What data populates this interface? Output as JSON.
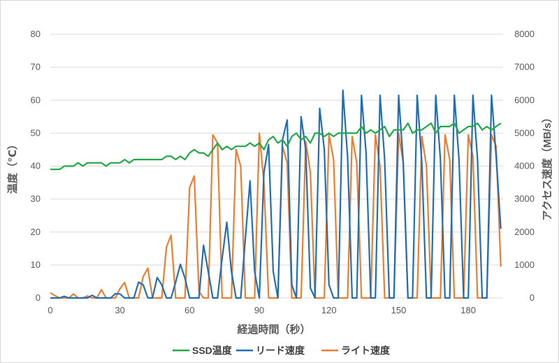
{
  "chart_data": {
    "type": "line",
    "xlabel": "経過時間（秒）",
    "ylabel_left": "温度（℃）",
    "ylabel_right": "アクセス速度（MB/s）",
    "xlim": [
      0,
      195
    ],
    "xticks": [
      0,
      30,
      60,
      90,
      120,
      150,
      180
    ],
    "ylim_left": [
      0,
      80
    ],
    "yticks_left": [
      0,
      10,
      20,
      30,
      40,
      50,
      60,
      70,
      80
    ],
    "ylim_right": [
      0,
      8000
    ],
    "yticks_right": [
      0,
      1000,
      2000,
      3000,
      4000,
      5000,
      6000,
      7000,
      8000
    ],
    "grid": true,
    "legend_position": "bottom",
    "series": [
      {
        "name": "SSD温度",
        "axis": "left",
        "color": "#22a846",
        "x": [
          0,
          2,
          4,
          6,
          8,
          10,
          12,
          14,
          16,
          18,
          20,
          22,
          24,
          26,
          28,
          30,
          32,
          34,
          36,
          38,
          40,
          42,
          44,
          46,
          48,
          50,
          52,
          54,
          56,
          58,
          60,
          62,
          64,
          66,
          68,
          70,
          72,
          74,
          76,
          78,
          80,
          82,
          84,
          86,
          88,
          90,
          92,
          94,
          96,
          98,
          100,
          102,
          104,
          106,
          108,
          110,
          112,
          114,
          116,
          118,
          120,
          122,
          124,
          126,
          128,
          130,
          132,
          134,
          136,
          138,
          140,
          142,
          144,
          146,
          148,
          150,
          152,
          154,
          156,
          158,
          160,
          162,
          164,
          166,
          168,
          170,
          172,
          174,
          176,
          178,
          180,
          182,
          184,
          186,
          188,
          190,
          192,
          194
        ],
        "values": [
          39,
          39,
          39,
          40,
          40,
          40,
          41,
          40,
          41,
          41,
          41,
          41,
          40,
          41,
          41,
          41,
          42,
          41,
          42,
          42,
          42,
          42,
          42,
          42,
          42,
          43,
          43,
          42,
          43,
          42,
          44,
          45,
          44,
          44,
          43,
          45,
          47,
          45,
          46,
          45,
          46,
          46,
          46,
          47,
          46,
          47,
          45,
          48,
          49,
          47,
          48,
          46,
          49,
          50,
          48,
          49,
          47,
          50,
          50,
          49,
          50,
          49,
          50,
          50,
          50,
          50,
          50,
          52,
          50,
          51,
          50,
          51,
          52,
          49,
          51,
          51,
          51,
          53,
          50,
          51,
          51,
          52,
          53,
          50,
          52,
          52,
          52,
          53,
          50,
          51,
          52,
          52,
          53,
          51,
          52,
          51,
          52,
          53
        ]
      },
      {
        "name": "リード速度",
        "axis": "right",
        "color": "#1f6fb6",
        "x": [
          0,
          2,
          4,
          6,
          8,
          10,
          12,
          14,
          16,
          18,
          20,
          22,
          24,
          26,
          28,
          30,
          32,
          34,
          36,
          38,
          40,
          42,
          44,
          46,
          48,
          50,
          52,
          54,
          56,
          58,
          60,
          62,
          64,
          66,
          68,
          70,
          72,
          74,
          76,
          78,
          80,
          82,
          84,
          86,
          88,
          90,
          92,
          94,
          96,
          98,
          100,
          102,
          104,
          106,
          108,
          110,
          112,
          114,
          116,
          118,
          120,
          122,
          124,
          126,
          128,
          130,
          132,
          134,
          136,
          138,
          140,
          142,
          144,
          146,
          148,
          150,
          152,
          154,
          156,
          158,
          160,
          162,
          164,
          166,
          168,
          170,
          172,
          174,
          176,
          178,
          180,
          182,
          184,
          186,
          188,
          190,
          192,
          194
        ],
        "values": [
          0,
          0,
          0,
          50,
          0,
          0,
          0,
          0,
          0,
          80,
          0,
          0,
          0,
          0,
          130,
          120,
          0,
          0,
          0,
          480,
          400,
          0,
          0,
          620,
          400,
          0,
          0,
          480,
          1020,
          600,
          0,
          0,
          0,
          1600,
          800,
          0,
          0,
          1200,
          2300,
          800,
          0,
          0,
          1800,
          3550,
          800,
          0,
          3800,
          4650,
          800,
          0,
          4800,
          5400,
          400,
          0,
          5500,
          4500,
          300,
          0,
          5750,
          4500,
          400,
          0,
          0,
          6300,
          4300,
          0,
          0,
          6150,
          4400,
          0,
          0,
          6150,
          4200,
          0,
          0,
          6150,
          4100,
          0,
          0,
          6150,
          4100,
          0,
          0,
          6150,
          4200,
          0,
          0,
          6150,
          4200,
          0,
          0,
          6150,
          4200,
          0,
          0,
          6150,
          4300,
          2100
        ]
      },
      {
        "name": "ライト速度",
        "axis": "right",
        "color": "#ee7d2f",
        "x": [
          0,
          2,
          4,
          6,
          8,
          10,
          12,
          14,
          16,
          18,
          20,
          22,
          24,
          26,
          28,
          30,
          32,
          34,
          36,
          38,
          40,
          42,
          44,
          46,
          48,
          50,
          52,
          54,
          56,
          58,
          60,
          62,
          64,
          66,
          68,
          70,
          72,
          74,
          76,
          78,
          80,
          82,
          84,
          86,
          88,
          90,
          92,
          94,
          96,
          98,
          100,
          102,
          104,
          106,
          108,
          110,
          112,
          114,
          116,
          118,
          120,
          122,
          124,
          126,
          128,
          130,
          132,
          134,
          136,
          138,
          140,
          142,
          144,
          146,
          148,
          150,
          152,
          154,
          156,
          158,
          160,
          162,
          164,
          166,
          168,
          170,
          172,
          174,
          176,
          178,
          180,
          182,
          184,
          186,
          188,
          190,
          192,
          194
        ],
        "values": [
          160,
          70,
          0,
          0,
          0,
          120,
          0,
          0,
          60,
          0,
          0,
          250,
          0,
          0,
          0,
          280,
          470,
          0,
          0,
          0,
          650,
          900,
          0,
          0,
          0,
          1550,
          1900,
          0,
          0,
          0,
          3350,
          3700,
          200,
          0,
          0,
          4950,
          4700,
          0,
          0,
          0,
          4500,
          4000,
          0,
          0,
          0,
          5000,
          3500,
          0,
          0,
          0,
          4600,
          4100,
          0,
          0,
          0,
          4750,
          3800,
          0,
          0,
          0,
          4950,
          4200,
          0,
          0,
          0,
          4900,
          4100,
          0,
          0,
          0,
          4950,
          4000,
          0,
          0,
          0,
          5000,
          4100,
          0,
          0,
          0,
          4900,
          4000,
          0,
          0,
          0,
          4950,
          4200,
          0,
          0,
          0,
          4950,
          4300,
          0,
          0,
          0,
          4950,
          4600,
          950
        ]
      }
    ]
  }
}
